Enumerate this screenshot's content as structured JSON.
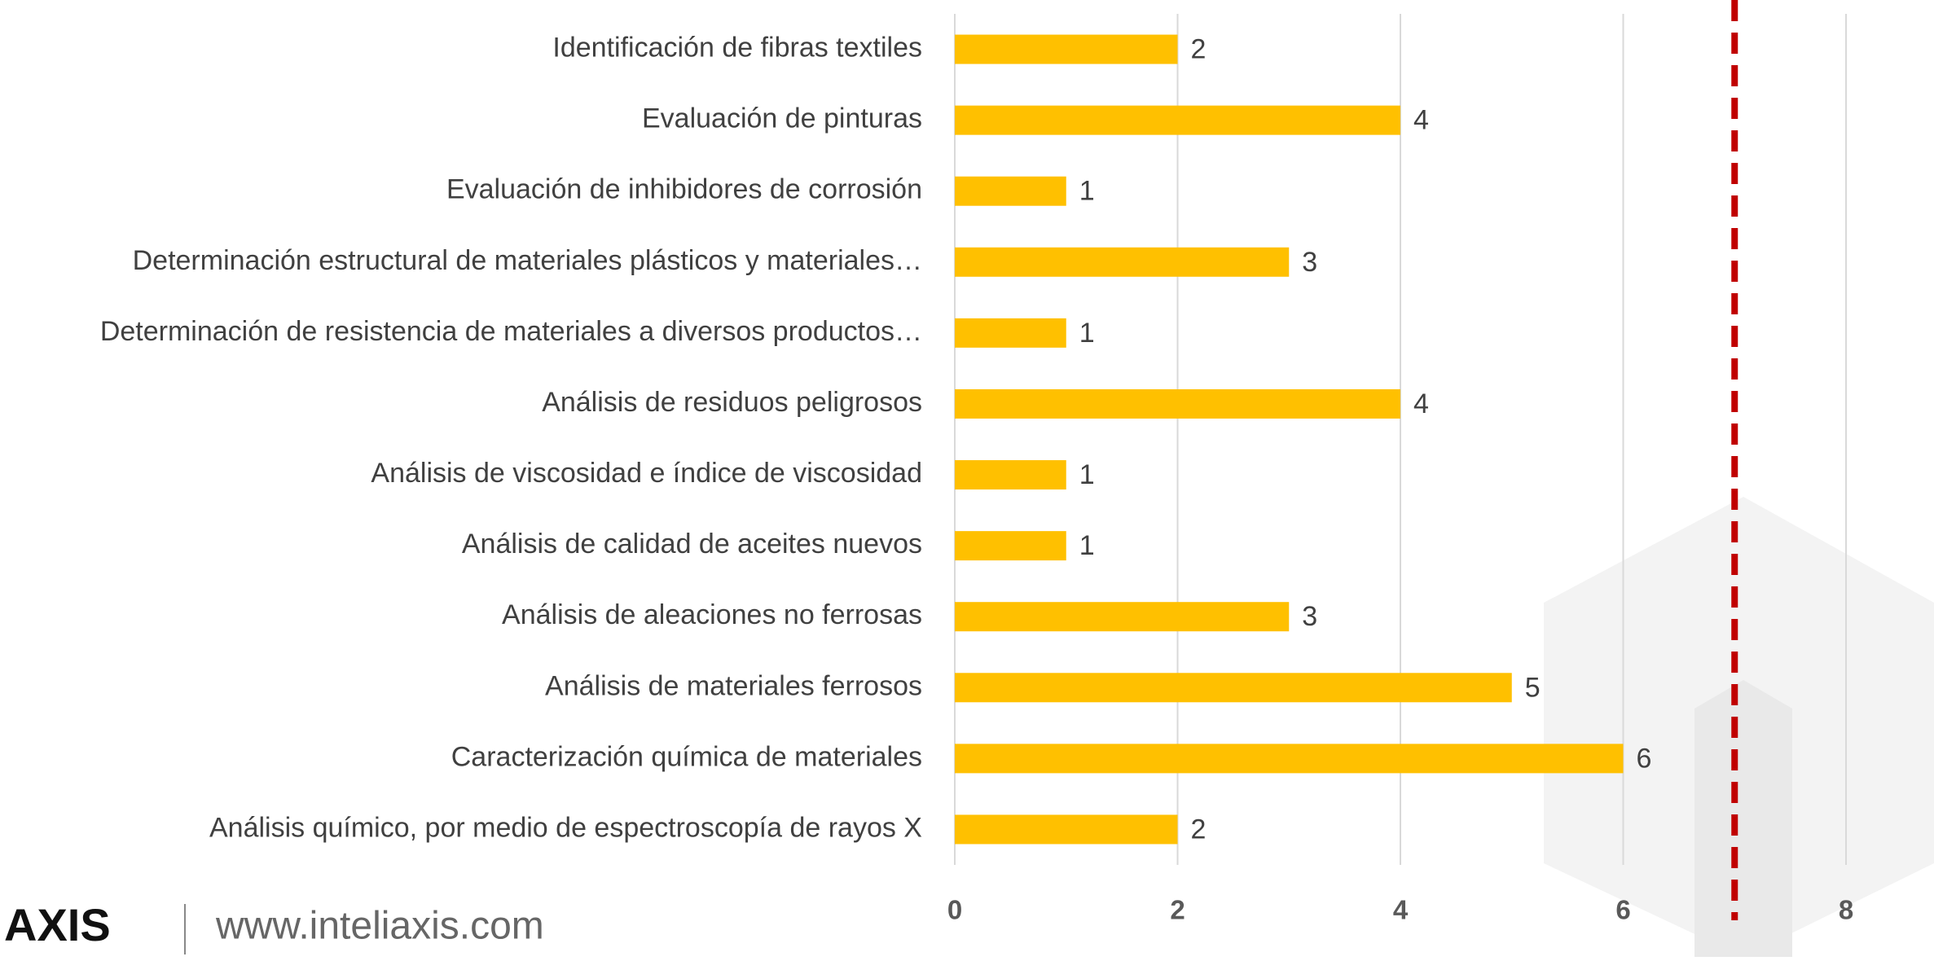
{
  "chart_data": {
    "type": "hbar",
    "categories": [
      "Identificación de fibras textiles",
      "Evaluación de pinturas",
      "Evaluación de inhibidores de corrosión",
      "Determinación estructural de materiales plásticos y materiales…",
      "Determinación de resistencia de materiales a diversos productos…",
      "Análisis de residuos peligrosos",
      "Análisis de viscosidad e índice de viscosidad",
      "Análisis de calidad de aceites nuevos",
      "Análisis de aleaciones no ferrosas",
      "Análisis de materiales ferrosos",
      "Caracterización química de materiales",
      "Análisis químico, por medio de espectroscopía de rayos X"
    ],
    "values": [
      2,
      4,
      1,
      3,
      1,
      4,
      1,
      1,
      3,
      5,
      6,
      2
    ],
    "color": "#ffc000",
    "xlim": [
      0,
      8
    ],
    "xticks": [
      0,
      2,
      4,
      6,
      8
    ],
    "grid": true,
    "reference_line": {
      "value": 7,
      "color": "#c00000"
    }
  },
  "footer": {
    "logo": "AXIS",
    "website": "www.inteliaxis.com"
  }
}
